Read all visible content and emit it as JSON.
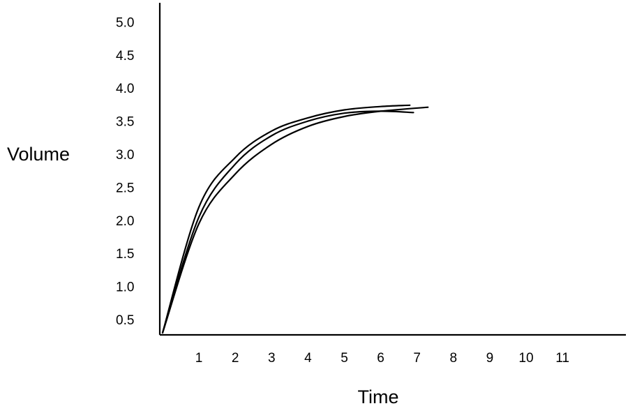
{
  "chart_data": {
    "type": "line",
    "title": "",
    "xlabel": "Time",
    "ylabel": "Volume",
    "x_ticks": [
      "1",
      "2",
      "3",
      "4",
      "5",
      "6",
      "7",
      "8",
      "9",
      "10",
      "11"
    ],
    "y_ticks": [
      "0.5",
      "1.0",
      "1.5",
      "2.0",
      "2.5",
      "3.0",
      "3.5",
      "4.0",
      "4.5",
      "5.0"
    ],
    "xlim": [
      0,
      12.5
    ],
    "ylim": [
      0.3,
      5.0
    ],
    "grid": false,
    "legend": "none",
    "line_color": "#000000",
    "series": [
      {
        "x": [
          0,
          1,
          2,
          3,
          4,
          5,
          6,
          6.8
        ],
        "y": [
          0.3,
          2.2,
          2.95,
          3.35,
          3.55,
          3.67,
          3.72,
          3.74
        ]
      },
      {
        "x": [
          0,
          1,
          2,
          3,
          4,
          5,
          6,
          7.3
        ],
        "y": [
          0.3,
          1.95,
          2.7,
          3.15,
          3.42,
          3.57,
          3.65,
          3.71
        ]
      },
      {
        "x": [
          0,
          1,
          2,
          3,
          4,
          5,
          6,
          6.9
        ],
        "y": [
          0.3,
          2.05,
          2.85,
          3.28,
          3.5,
          3.62,
          3.65,
          3.63
        ]
      }
    ]
  }
}
